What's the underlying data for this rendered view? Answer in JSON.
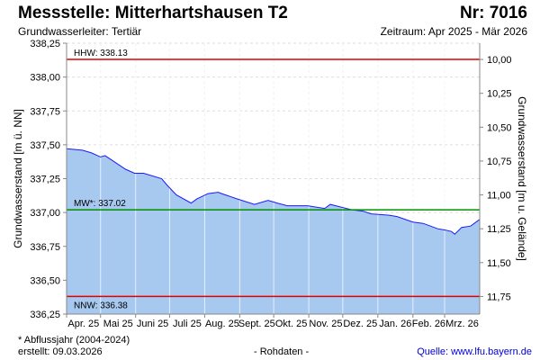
{
  "header": {
    "title": "Messstelle: Mitterhartshausen T2",
    "number": "Nr: 7016",
    "aquifer": "Grundwasserleiter: Tertiär",
    "period": "Zeitraum: Apr 2025 - Mär 2026"
  },
  "footer": {
    "note": "* Abflussjahr (2004-2024)",
    "created": "erstellt:  09.03.2026",
    "raw": "- Rohdaten -",
    "source": "Quelle: www.lfu.bayern.de"
  },
  "colors": {
    "fill": "#a7c8ef",
    "line": "#1a1aff",
    "hhw": "#e00000",
    "mw": "#009000",
    "nnw": "#e00000",
    "source": "#0000cc"
  },
  "chart_data": {
    "type": "area",
    "start_date": "2025-04-01",
    "days_total": 365,
    "ylabel": "Grundwasserstand [m ü. NN]",
    "ylabel_right": "Grundwasserstand [m u. Gelände]",
    "ylim": [
      336.25,
      338.25
    ],
    "ground_level": 348.13,
    "yticks": [
      "338,25",
      "338,00",
      "337,75",
      "337,50",
      "337,25",
      "337,00",
      "336,75",
      "336,50",
      "336,25"
    ],
    "yticks_right": [
      "10,00",
      "10,25",
      "10,50",
      "10,75",
      "11,00",
      "11,25",
      "11,50",
      "11,75"
    ],
    "months": [
      "Apr. 25",
      "Mai 25",
      "Juni 25",
      "Juli 25",
      "Aug. 25",
      "Sept. 25",
      "Okt. 25",
      "Nov. 25",
      "Dez. 25",
      "Jan. 26",
      "Feb. 26",
      "Mrz. 26"
    ],
    "month_days": [
      30,
      31,
      30,
      31,
      31,
      30,
      31,
      30,
      31,
      31,
      28,
      31
    ],
    "reference_lines": [
      {
        "label": "HHW: 338.13",
        "value": 338.13
      },
      {
        "label": "MW*: 337.02",
        "value": 337.02
      },
      {
        "label": "NNW: 336.38",
        "value": 336.38
      }
    ],
    "series": [
      {
        "name": "Grundwasserstand",
        "day": [
          0,
          1,
          14,
          22,
          30,
          34,
          52,
          60,
          68,
          84,
          89,
          97,
          110,
          115,
          125,
          134,
          137,
          151,
          166,
          178,
          186,
          195,
          213,
          228,
          233,
          252,
          262,
          269,
          285,
          292,
          306,
          315,
          328,
          335,
          340,
          343,
          349,
          357,
          365,
          372,
          376
        ],
        "values": [
          337.47,
          337.47,
          337.46,
          337.44,
          337.41,
          337.42,
          337.32,
          337.29,
          337.29,
          337.25,
          337.2,
          337.13,
          337.07,
          337.1,
          337.14,
          337.15,
          337.14,
          337.1,
          337.06,
          337.09,
          337.07,
          337.05,
          337.05,
          337.03,
          337.06,
          337.02,
          337.01,
          336.99,
          336.98,
          336.97,
          336.93,
          336.92,
          336.88,
          336.87,
          336.86,
          336.84,
          336.89,
          336.9,
          336.95,
          336.94,
          336.93
        ]
      }
    ]
  }
}
